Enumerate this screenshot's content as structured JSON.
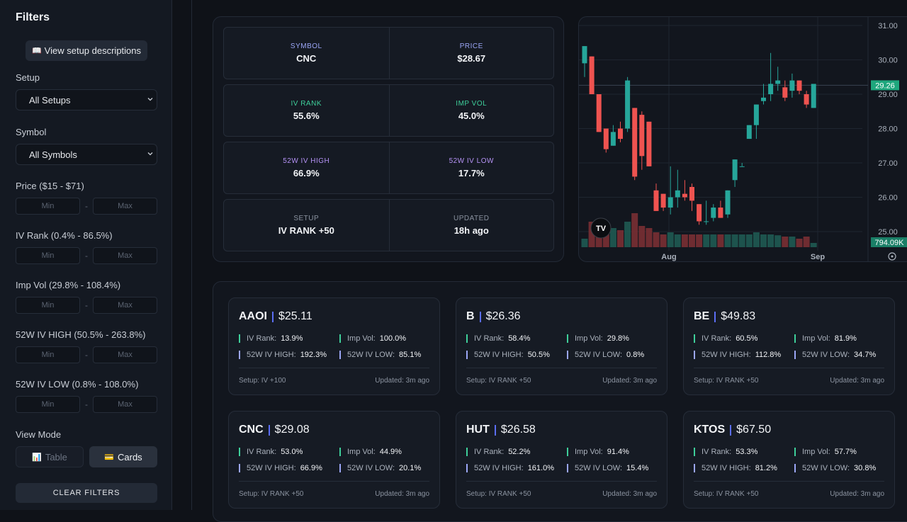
{
  "sidebar": {
    "title": "Filters",
    "desc_button": "View setup descriptions",
    "setup_label": "Setup",
    "setup_value": "All Setups",
    "symbol_label": "Symbol",
    "symbol_value": "All Symbols",
    "ranges": [
      {
        "label": "Price ($15 - $71)",
        "min": "Min",
        "max": "Max"
      },
      {
        "label": "IV Rank (0.4% - 86.5%)",
        "min": "Min",
        "max": "Max"
      },
      {
        "label": "Imp Vol (29.8% - 108.4%)",
        "min": "Min",
        "max": "Max"
      },
      {
        "label": "52W IV HIGH (50.5% - 263.8%)",
        "min": "Min",
        "max": "Max"
      },
      {
        "label": "52W IV LOW (0.8% - 108.0%)",
        "min": "Min",
        "max": "Max"
      }
    ],
    "range_dash": "-",
    "view_mode_label": "View Mode",
    "view_table": "Table",
    "view_cards": "Cards",
    "clear_filters": "CLEAR FILTERS"
  },
  "detail": {
    "rows": [
      {
        "l_key": "SYMBOL",
        "l_val": "CNC",
        "r_key": "PRICE",
        "r_val": "$28.67",
        "color": "#9ba6f7"
      },
      {
        "l_key": "IV RANK",
        "l_val": "55.6%",
        "r_key": "IMP VOL",
        "r_val": "45.0%",
        "color": "#3ecf9a"
      },
      {
        "l_key": "52W IV HIGH",
        "l_val": "66.9%",
        "r_key": "52W IV LOW",
        "r_val": "17.7%",
        "color": "#b592f5"
      },
      {
        "l_key": "SETUP",
        "l_val": "IV RANK +50",
        "r_key": "UPDATED",
        "r_val": "18h ago",
        "color": "#8b93a0"
      }
    ]
  },
  "chart": {
    "logo": "TV",
    "x_labels": [
      "Aug",
      "Sep"
    ],
    "y_labels": [
      "31.00",
      "30.00",
      "29.00",
      "28.00",
      "27.00",
      "26.00",
      "25.00"
    ],
    "last_price": "29.26",
    "volume": "794.09K"
  },
  "chart_data": {
    "type": "candlestick",
    "y_range": [
      24.6,
      31.2
    ],
    "up_color": "#26a69a",
    "down_color": "#ef5350",
    "candles": [
      {
        "o": 29.9,
        "h": 30.4,
        "l": 29.5,
        "c": 30.4
      },
      {
        "o": 30.1,
        "h": 30.1,
        "l": 29.0,
        "c": 29.0
      },
      {
        "o": 29.0,
        "h": 29.0,
        "l": 27.9,
        "c": 27.9
      },
      {
        "o": 28.0,
        "h": 28.0,
        "l": 27.3,
        "c": 27.4
      },
      {
        "o": 27.5,
        "h": 28.1,
        "l": 27.5,
        "c": 27.9
      },
      {
        "o": 28.0,
        "h": 28.2,
        "l": 27.6,
        "c": 27.7
      },
      {
        "o": 28.0,
        "h": 29.5,
        "l": 27.9,
        "c": 29.4
      },
      {
        "o": 28.6,
        "h": 28.6,
        "l": 26.5,
        "c": 26.6
      },
      {
        "o": 28.4,
        "h": 28.5,
        "l": 26.8,
        "c": 27.2
      },
      {
        "o": 28.2,
        "h": 28.2,
        "l": 26.9,
        "c": 26.9
      },
      {
        "o": 26.2,
        "h": 26.4,
        "l": 25.6,
        "c": 25.6
      },
      {
        "o": 26.1,
        "h": 26.1,
        "l": 25.6,
        "c": 25.7
      },
      {
        "o": 25.7,
        "h": 26.9,
        "l": 25.5,
        "c": 26.0
      },
      {
        "o": 26.0,
        "h": 26.8,
        "l": 25.7,
        "c": 26.2
      },
      {
        "o": 26.1,
        "h": 26.5,
        "l": 25.9,
        "c": 26.0
      },
      {
        "o": 26.3,
        "h": 26.4,
        "l": 25.6,
        "c": 25.9
      },
      {
        "o": 25.8,
        "h": 25.8,
        "l": 25.2,
        "c": 25.3
      },
      {
        "o": 25.3,
        "h": 25.9,
        "l": 25.2,
        "c": 25.3
      },
      {
        "o": 25.4,
        "h": 25.8,
        "l": 25.3,
        "c": 25.7
      },
      {
        "o": 25.7,
        "h": 25.9,
        "l": 25.4,
        "c": 25.4
      },
      {
        "o": 25.5,
        "h": 26.2,
        "l": 25.4,
        "c": 26.2
      },
      {
        "o": 26.5,
        "h": 27.1,
        "l": 26.3,
        "c": 27.1
      },
      {
        "o": 26.9,
        "h": 27.0,
        "l": 26.9,
        "c": 26.9
      },
      {
        "o": 27.7,
        "h": 28.1,
        "l": 27.7,
        "c": 28.1
      },
      {
        "o": 28.1,
        "h": 28.7,
        "l": 27.7,
        "c": 28.7
      },
      {
        "o": 28.8,
        "h": 29.3,
        "l": 28.7,
        "c": 28.9
      },
      {
        "o": 29.0,
        "h": 30.2,
        "l": 28.8,
        "c": 29.3
      },
      {
        "o": 29.3,
        "h": 29.8,
        "l": 29.1,
        "c": 29.4
      },
      {
        "o": 29.2,
        "h": 29.4,
        "l": 28.8,
        "c": 28.9
      },
      {
        "o": 29.1,
        "h": 29.6,
        "l": 28.9,
        "c": 29.4
      },
      {
        "o": 29.4,
        "h": 29.4,
        "l": 29.0,
        "c": 29.1
      },
      {
        "o": 29.0,
        "h": 29.1,
        "l": 28.6,
        "c": 28.7
      },
      {
        "o": 28.6,
        "h": 29.3,
        "l": 28.6,
        "c": 29.3
      }
    ]
  },
  "cards": [
    {
      "symbol": "AAOI",
      "price": "$25.11",
      "iv_rank": "13.9%",
      "imp_vol": "100.0%",
      "iv_high": "192.3%",
      "iv_low": "85.1%",
      "setup": "Setup: IV +100",
      "updated": "Updated: 3m ago"
    },
    {
      "symbol": "B",
      "price": "$26.36",
      "iv_rank": "58.4%",
      "imp_vol": "29.8%",
      "iv_high": "50.5%",
      "iv_low": "0.8%",
      "setup": "Setup: IV RANK +50",
      "updated": "Updated: 3m ago"
    },
    {
      "symbol": "BE",
      "price": "$49.83",
      "iv_rank": "60.5%",
      "imp_vol": "81.9%",
      "iv_high": "112.8%",
      "iv_low": "34.7%",
      "setup": "Setup: IV RANK +50",
      "updated": "Updated: 3m ago"
    },
    {
      "symbol": "CNC",
      "price": "$29.08",
      "iv_rank": "53.0%",
      "imp_vol": "44.9%",
      "iv_high": "66.9%",
      "iv_low": "20.1%",
      "setup": "Setup: IV RANK +50",
      "updated": "Updated: 3m ago"
    },
    {
      "symbol": "HUT",
      "price": "$26.58",
      "iv_rank": "52.2%",
      "imp_vol": "91.4%",
      "iv_high": "161.0%",
      "iv_low": "15.4%",
      "setup": "Setup: IV RANK +50",
      "updated": "Updated: 3m ago"
    },
    {
      "symbol": "KTOS",
      "price": "$67.50",
      "iv_rank": "53.3%",
      "imp_vol": "57.7%",
      "iv_high": "81.2%",
      "iv_low": "30.8%",
      "setup": "Setup: IV RANK +50",
      "updated": "Updated: 3m ago"
    }
  ],
  "card_labels": {
    "iv_rank": "IV Rank:",
    "imp_vol": "Imp Vol:",
    "iv_high": "52W IV HIGH:",
    "iv_low": "52W IV LOW:"
  }
}
